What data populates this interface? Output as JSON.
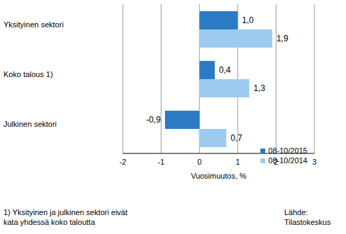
{
  "chart_data": {
    "type": "bar",
    "orientation": "horizontal",
    "categories": [
      "Yksityinen sektori",
      "Koko talous 1)",
      "Julkinen sektori"
    ],
    "series": [
      {
        "name": "08-10/2015",
        "color": "#2b7bc4",
        "values": [
          1.0,
          0.4,
          -0.9
        ],
        "value_labels": [
          "1,0",
          "0,4",
          "-0,9"
        ]
      },
      {
        "name": "08-10/2014",
        "color": "#9dcbef",
        "values": [
          1.9,
          1.3,
          0.7
        ],
        "value_labels": [
          "1,9",
          "1,3",
          "0,7"
        ]
      }
    ],
    "x_label": "Vuosimuutos, %",
    "xlim": [
      -2,
      3
    ],
    "xticks": [
      -2,
      -1,
      0,
      1,
      2,
      3
    ],
    "grid": true,
    "data_labels": true,
    "legend": "lower right",
    "annotations": [
      "1) Yksityinen ja julkinen sektori eivät\nkata yhdessä koko taloutta",
      "Lähde:\nTilastokeskus"
    ]
  }
}
